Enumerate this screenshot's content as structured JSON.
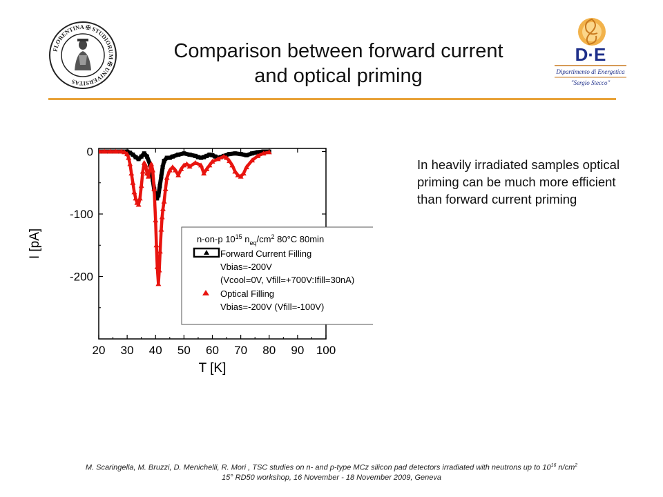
{
  "slide": {
    "title_line1": "Comparison between forward current",
    "title_line2": "and optical priming",
    "side_text": "In heavily irradiated samples optical priming can be much more efficient than forward current priming",
    "footer_line1_pre": "M. Scaringella, M. Bruzzi, D. Menichelli, R. Mori , TSC studies on n- and p-type MCz silicon pad detectors irradiated with neutrons up to 10",
    "footer_exp1": "16",
    "footer_mid": " n/cm",
    "footer_exp2": "2",
    "footer_line2": "15° RD50 workshop, 16 November - 18 November 2009, Geneva",
    "accent_color": "#e8a33a"
  },
  "logos": {
    "left_text": "FLORENTINA ✠ STUDIORUM ✠ UNIVERSITAS",
    "right_brand": "D·E",
    "right_line1": "Dipartimento di Energetica",
    "right_line2": "\"Sergio Stecco\"",
    "right_color": "#1e2f8a"
  },
  "chart_data": {
    "type": "scatter",
    "xlabel": "T  [K]",
    "ylabel": "I  [pA]",
    "xlim": [
      20,
      100
    ],
    "ylim": [
      -300,
      5
    ],
    "xticks": [
      20,
      30,
      40,
      50,
      60,
      70,
      80,
      90,
      100
    ],
    "yticks": [
      0,
      -100,
      -200
    ],
    "legend": {
      "position": "lower-right",
      "title": "n-on-p 10",
      "title_exp": "15",
      "title_n": " n",
      "title_sub": "eq",
      "title_unit": "/cm",
      "title_exp2": "2",
      "title_rest": " 80°C 80min",
      "lines": [
        "Forward Current Filling",
        "Vbias=-200V",
        "(Vcool=0V, Vfill=+700V:Ifill=30nA)",
        "Optical Filling",
        "Vbias=-200V (Vfill=-100V)"
      ]
    },
    "series": [
      {
        "name": "Forward Current Filling",
        "color": "#000000",
        "marker": "square",
        "x": [
          20,
          22,
          24,
          26,
          28,
          30,
          31,
          32,
          33,
          34,
          35,
          36,
          37,
          38,
          38.5,
          39,
          39.5,
          40,
          40.5,
          41,
          41.5,
          42,
          42.5,
          43,
          44,
          45,
          46,
          48,
          50,
          52,
          54,
          55,
          56,
          57,
          58,
          59,
          60,
          61,
          62,
          63,
          64,
          66,
          68,
          70,
          72,
          74,
          76,
          78,
          80
        ],
        "y": [
          0,
          0,
          0,
          0,
          0,
          0,
          -2,
          -5,
          -9,
          -12,
          -8,
          -3,
          -8,
          -20,
          -30,
          -45,
          -60,
          -72,
          -75,
          -70,
          -55,
          -40,
          -25,
          -15,
          -10,
          -10,
          -8,
          -5,
          -3,
          -5,
          -7,
          -9,
          -10,
          -9,
          -7,
          -5,
          -6,
          -8,
          -10,
          -9,
          -7,
          -4,
          -3,
          -4,
          -6,
          -3,
          -1,
          0,
          0
        ]
      },
      {
        "name": "Optical Filling",
        "color": "#e8140f",
        "marker": "triangle",
        "x": [
          20,
          22,
          24,
          26,
          28,
          29,
          30,
          30.5,
          31,
          31.5,
          32,
          32.5,
          33,
          33.5,
          34,
          34.5,
          35,
          35.5,
          36,
          36.5,
          37,
          37.5,
          38,
          38.5,
          39,
          39.5,
          40,
          40.3,
          40.6,
          41,
          41.3,
          41.6,
          42,
          42.3,
          42.6,
          43,
          43.5,
          44,
          45,
          46,
          47,
          48,
          49,
          50,
          51,
          52,
          54,
          56,
          57,
          58,
          59,
          60,
          62,
          64,
          65,
          66,
          67,
          68,
          69,
          70,
          71,
          72,
          74,
          76,
          78,
          80
        ],
        "y": [
          0,
          0,
          0,
          0,
          0,
          -1,
          -4,
          -10,
          -20,
          -35,
          -50,
          -65,
          -75,
          -82,
          -85,
          -75,
          -55,
          -32,
          -18,
          -22,
          -35,
          -40,
          -28,
          -20,
          -30,
          -60,
          -110,
          -150,
          -185,
          -212,
          -190,
          -160,
          -125,
          -105,
          -92,
          -80,
          -60,
          -42,
          -30,
          -25,
          -30,
          -38,
          -28,
          -22,
          -20,
          -24,
          -18,
          -22,
          -35,
          -28,
          -22,
          -16,
          -12,
          -8,
          -10,
          -15,
          -22,
          -32,
          -38,
          -40,
          -35,
          -25,
          -14,
          -7,
          -3,
          -1
        ]
      }
    ]
  }
}
